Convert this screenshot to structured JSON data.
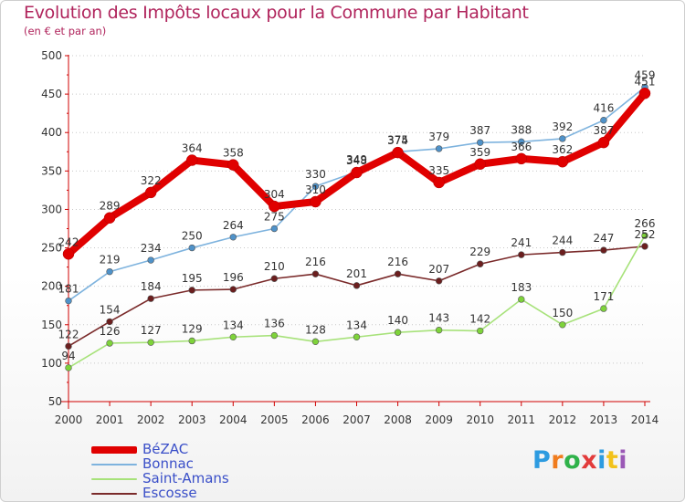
{
  "title": "Evolution des Impôts locaux pour la Commune par Habitant",
  "subtitle": "(en € et par an)",
  "logo": {
    "text": "Proxiti",
    "colors": [
      "#2d9be0",
      "#f07c1e",
      "#2fb24a",
      "#e23b3b",
      "#2d9be0",
      "#f2c21a",
      "#9b59b6"
    ]
  },
  "chart_data": {
    "type": "line",
    "title": "Evolution des Impôts locaux pour la Commune par Habitant",
    "subtitle": "(en € et par an)",
    "xlabel": "",
    "ylabel": "",
    "x": [
      "2000",
      "2001",
      "2002",
      "2003",
      "2004",
      "2005",
      "2006",
      "2007",
      "2008",
      "2009",
      "2010",
      "2011",
      "2012",
      "2013",
      "2014"
    ],
    "ylim": [
      50,
      500
    ],
    "yticks": [
      50,
      100,
      150,
      200,
      250,
      300,
      350,
      400,
      450,
      500
    ],
    "grid": "horizontal dotted",
    "legend_position": "bottom-left",
    "series": [
      {
        "name": "BéZAC",
        "color": "#e00000",
        "values": [
          242,
          289,
          322,
          364,
          358,
          304,
          310,
          348,
          374,
          335,
          359,
          366,
          362,
          387,
          451
        ]
      },
      {
        "name": "Bonnac",
        "color": "#4f92c9",
        "line_color": "#7eb3de",
        "values": [
          181,
          219,
          234,
          250,
          264,
          275,
          330,
          349,
          375,
          379,
          387,
          388,
          392,
          416,
          459
        ]
      },
      {
        "name": "Saint-Amans",
        "color": "#7ed33a",
        "line_color": "#a7e27a",
        "values": [
          94,
          126,
          127,
          129,
          134,
          136,
          128,
          134,
          140,
          143,
          142,
          183,
          150,
          171,
          266
        ]
      },
      {
        "name": "Escosse",
        "color": "#6b1e1e",
        "line_color": "#7a2a2a",
        "values": [
          122,
          154,
          184,
          195,
          196,
          210,
          216,
          201,
          216,
          207,
          229,
          241,
          244,
          247,
          252
        ]
      }
    ]
  }
}
